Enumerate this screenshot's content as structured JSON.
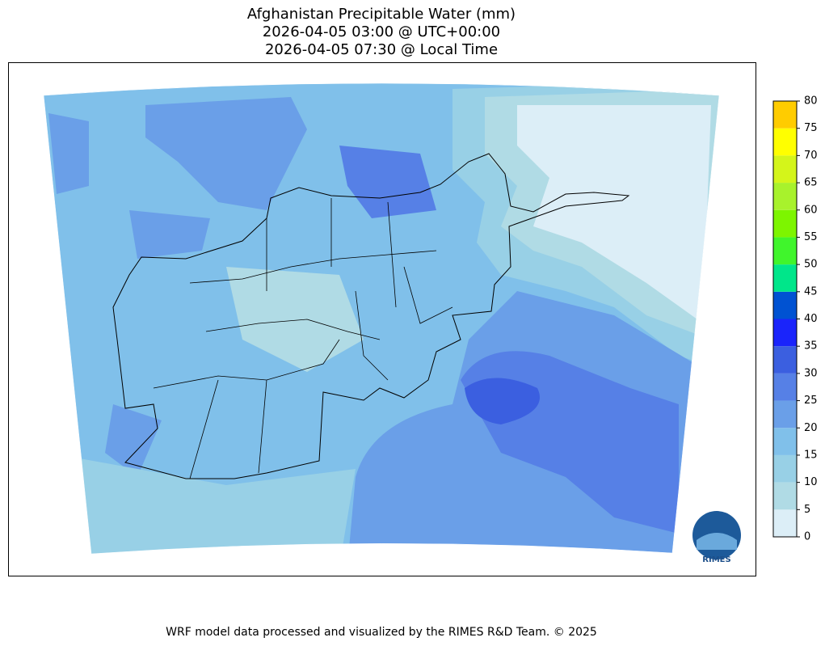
{
  "header": {
    "title_lines": [
      "Afghanistan Precipitable Water (mm)",
      "2026-04-05 03:00 @ UTC+00:00",
      "2026-04-05 07:30 @ Local Time"
    ]
  },
  "colorbar": {
    "levels": [
      0,
      5,
      10,
      15,
      20,
      25,
      30,
      35,
      40,
      45,
      50,
      55,
      60,
      65,
      70,
      75,
      80
    ],
    "colors": [
      "#dceef7",
      "#b0dbe5",
      "#98d0e6",
      "#80c0ea",
      "#6a9fe8",
      "#5680e6",
      "#3b5fe0",
      "#1a24fb",
      "#0052d2",
      "#00e68a",
      "#40f52c",
      "#7df500",
      "#a8f22c",
      "#d4f51a",
      "#ffff00",
      "#ffcc00"
    ]
  },
  "logo": {
    "text": "RIMES"
  },
  "footer": {
    "text": "WRF model data processed and visualized by the RIMES R&D Team. © 2025"
  }
}
